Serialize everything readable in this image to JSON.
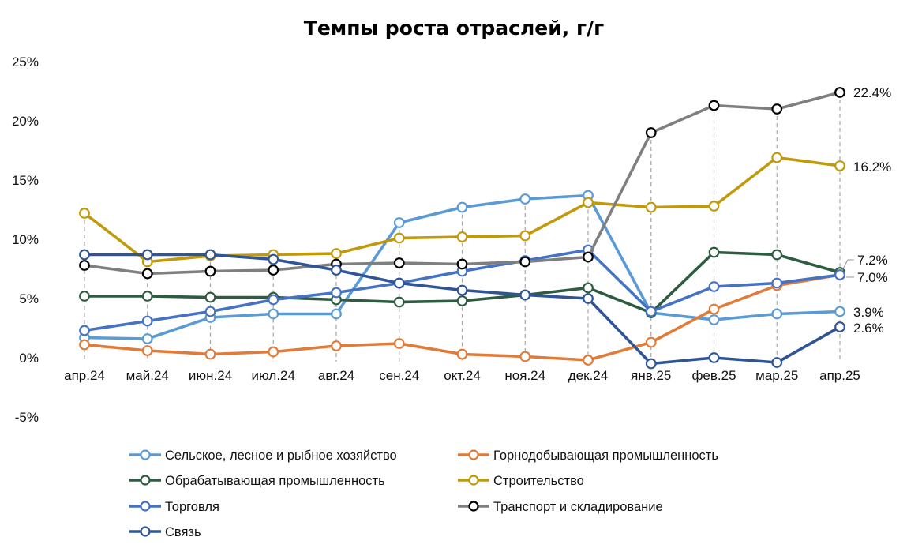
{
  "chart_data": {
    "type": "line",
    "title": "Темпы роста отраслей, г/г",
    "xlabel": "",
    "ylabel": "",
    "categories": [
      "апр.24",
      "май.24",
      "июн.24",
      "июл.24",
      "авг.24",
      "сен.24",
      "окт.24",
      "ноя.24",
      "дек.24",
      "янв.25",
      "фев.25",
      "мар.25",
      "апр.25"
    ],
    "ylim": [
      -5,
      25
    ],
    "yticks": [
      -5,
      0,
      5,
      10,
      15,
      20,
      25
    ],
    "ytick_labels": [
      "-5%",
      "0%",
      "5%",
      "10%",
      "15%",
      "20%",
      "25%"
    ],
    "grid": false,
    "vertical_dashed_guides": true,
    "legend_position": "bottom",
    "series": [
      {
        "name": "Сельское, лесное и рыбное хозяйство",
        "color": "#5B9BD5",
        "values": [
          1.7,
          1.6,
          3.4,
          3.7,
          3.7,
          11.4,
          12.7,
          13.4,
          13.7,
          3.8,
          3.2,
          3.7,
          3.9
        ],
        "end_label": "3.9%"
      },
      {
        "name": "Горнодобывающая промышленность",
        "color": "#E07B39",
        "values": [
          1.1,
          0.6,
          0.3,
          0.5,
          1.0,
          1.2,
          0.3,
          0.1,
          -0.2,
          1.3,
          4.1,
          6.1,
          7.0
        ],
        "end_label": ""
      },
      {
        "name": "Обрабатывающая промышленность",
        "color": "#2E5C40",
        "values": [
          5.2,
          5.2,
          5.1,
          5.1,
          4.9,
          4.7,
          4.8,
          5.3,
          5.9,
          3.8,
          8.9,
          8.7,
          7.2
        ],
        "end_label": "7.2%"
      },
      {
        "name": "Строительство",
        "color": "#C19A0B",
        "values": [
          12.2,
          8.1,
          8.6,
          8.7,
          8.8,
          10.1,
          10.2,
          10.3,
          13.1,
          12.7,
          12.8,
          16.9,
          16.2
        ],
        "end_label": "16.2%"
      },
      {
        "name": "Торговля",
        "color": "#4472C4",
        "values": [
          2.3,
          3.1,
          3.9,
          4.9,
          5.5,
          6.3,
          7.3,
          8.2,
          9.1,
          3.9,
          6.0,
          6.3,
          7.0
        ],
        "end_label": "7.0%"
      },
      {
        "name": "Транспорт и складирование",
        "color": "#7F7F7F",
        "values": [
          7.8,
          7.1,
          7.3,
          7.4,
          7.9,
          8.0,
          7.9,
          8.1,
          8.5,
          19.0,
          21.3,
          21.0,
          22.4
        ],
        "end_label": "22.4%"
      },
      {
        "name": "Связь",
        "color": "#2F5597",
        "values": [
          8.7,
          8.7,
          8.7,
          8.3,
          7.4,
          6.3,
          5.7,
          5.3,
          5.0,
          -0.5,
          0.0,
          -0.4,
          2.6
        ],
        "end_label": "2.6%"
      }
    ]
  }
}
